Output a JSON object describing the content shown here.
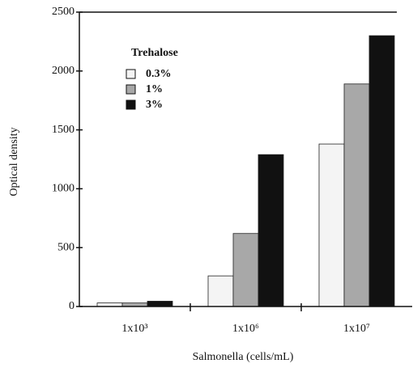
{
  "chart_data": {
    "type": "bar",
    "y_label": "Optical density",
    "x_label": "Salmonella (cells/mL)",
    "legend_title": "Trehalose",
    "categories": [
      "1x10³",
      "1x10⁶",
      "1x10⁷"
    ],
    "series": [
      {
        "name": "0.3%",
        "color": "#f4f4f4",
        "values": [
          30,
          260,
          1380
        ]
      },
      {
        "name": "1%",
        "color": "#a8a8a8",
        "values": [
          30,
          620,
          1890
        ]
      },
      {
        "name": "3%",
        "color": "#111111",
        "values": [
          45,
          1290,
          2300
        ]
      }
    ],
    "ylim": [
      0,
      2500
    ],
    "yticks": [
      0,
      500,
      1000,
      1500,
      2000,
      2500
    ]
  }
}
